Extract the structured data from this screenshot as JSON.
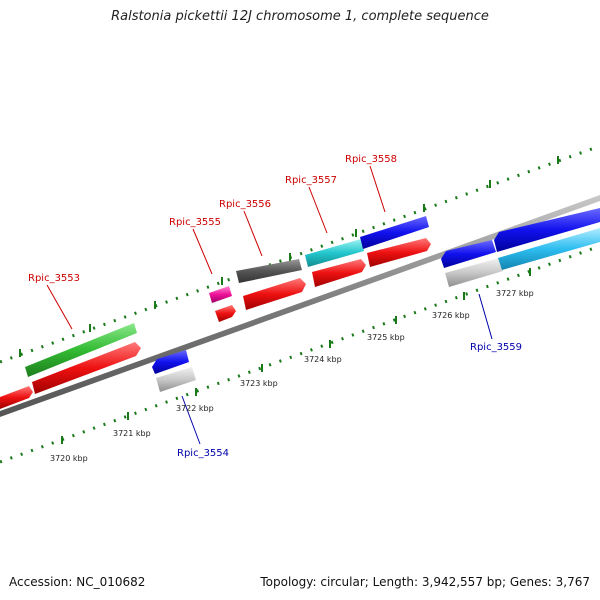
{
  "title": "Ralstonia pickettii 12J chromosome 1, complete sequence",
  "footer": {
    "accession": "Accession: NC_010682",
    "summary": "Topology: circular; Length: 3,942,557 bp; Genes: 3,767"
  },
  "colors": {
    "forward_label": "#cc0000",
    "reverse_label": "#0000aa",
    "backbone": "#8a8a8a",
    "ticks": "#1a7a1a"
  },
  "kbp_labels": [
    "3720 kbp",
    "3721 kbp",
    "3722 kbp",
    "3723 kbp",
    "3724 kbp",
    "3725 kbp",
    "3726 kbp",
    "3727 kbp"
  ],
  "gene_labels": {
    "forward": [
      "Rpic_3553",
      "Rpic_3555",
      "Rpic_3556",
      "Rpic_3557",
      "Rpic_3558"
    ],
    "reverse": [
      "Rpic_3554",
      "Rpic_3559"
    ]
  }
}
